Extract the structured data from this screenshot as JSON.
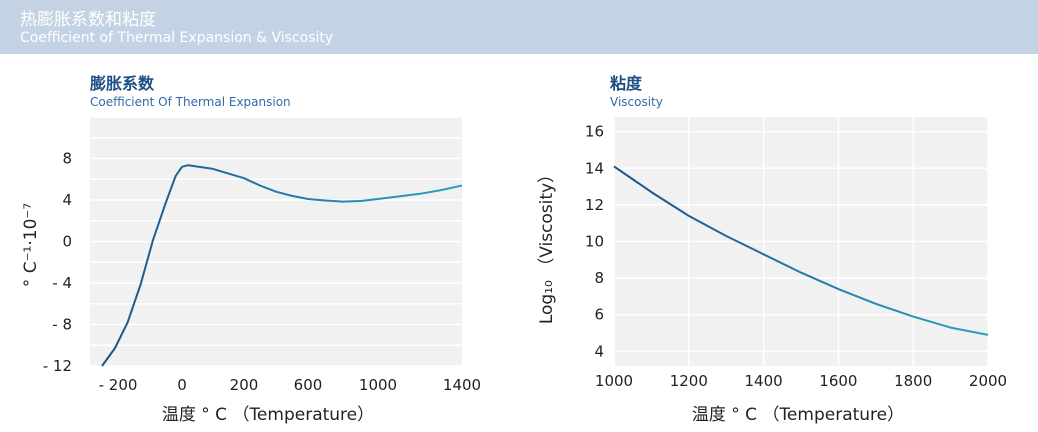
{
  "banner": {
    "title_zh": "热膨胀系数和粘度",
    "title_en": "Coefficient of Thermal Expansion & Viscosity"
  },
  "colors": {
    "banner": "#c3d3e3",
    "plot_bg": "#f1f1f1",
    "grid": "#ffffff",
    "line_start": "#1d4f86",
    "line_end": "#2aa3c2"
  },
  "chart_data": [
    {
      "type": "line",
      "title": "膨胀系数",
      "subtitle": "Coefficient  Of  Thermal  Expansion",
      "xlabel": "温度 ° C （Temperature）",
      "ylabel": "° C⁻¹·10⁻⁷",
      "x_ticks": [
        -200,
        0,
        200,
        600,
        1000,
        1400
      ],
      "x_tick_labels": [
        "- 200",
        "0",
        "200",
        "600",
        "1000",
        "1400"
      ],
      "y_ticks": [
        -12,
        -8,
        -4,
        0,
        4,
        8
      ],
      "y_tick_labels": [
        "- 12",
        "- 8",
        "- 4",
        "0",
        "4",
        "8"
      ],
      "xlim": [
        -250,
        1400
      ],
      "ylim": [
        -12,
        12
      ],
      "grid": true,
      "series": [
        {
          "x": [
            -250,
            -210,
            -170,
            -130,
            -90,
            -50,
            -20,
            0,
            20,
            100,
            200,
            300,
            400,
            500,
            600,
            700,
            800,
            900,
            1000,
            1100,
            1200,
            1300,
            1400
          ],
          "y": [
            -12,
            -10.3,
            -7.8,
            -4.2,
            0.2,
            3.8,
            6.3,
            7.2,
            7.35,
            7.0,
            6.1,
            5.4,
            4.8,
            4.4,
            4.1,
            3.95,
            3.85,
            3.9,
            4.1,
            4.35,
            4.6,
            4.95,
            5.4
          ]
        }
      ]
    },
    {
      "type": "line",
      "title": "粘度",
      "subtitle": "Viscosity",
      "xlabel": "温度 ° C （Temperature）",
      "ylabel": "Log₁₀ （Viscosity）",
      "x_ticks": [
        1000,
        1200,
        1400,
        1600,
        1800,
        2000
      ],
      "x_tick_labels": [
        "1000",
        "1200",
        "1400",
        "1600",
        "1800",
        "2000"
      ],
      "y_ticks": [
        4,
        6,
        8,
        10,
        12,
        14,
        16
      ],
      "y_tick_labels": [
        "4",
        "6",
        "8",
        "10",
        "12",
        "14",
        "16"
      ],
      "xlim": [
        1000,
        2000
      ],
      "ylim": [
        3.2,
        16.8
      ],
      "grid": true,
      "series": [
        {
          "x": [
            1000,
            1100,
            1200,
            1300,
            1400,
            1500,
            1600,
            1700,
            1800,
            1900,
            2000
          ],
          "y": [
            14.1,
            12.7,
            11.4,
            10.3,
            9.3,
            8.3,
            7.4,
            6.6,
            5.9,
            5.3,
            4.9
          ]
        }
      ]
    }
  ]
}
